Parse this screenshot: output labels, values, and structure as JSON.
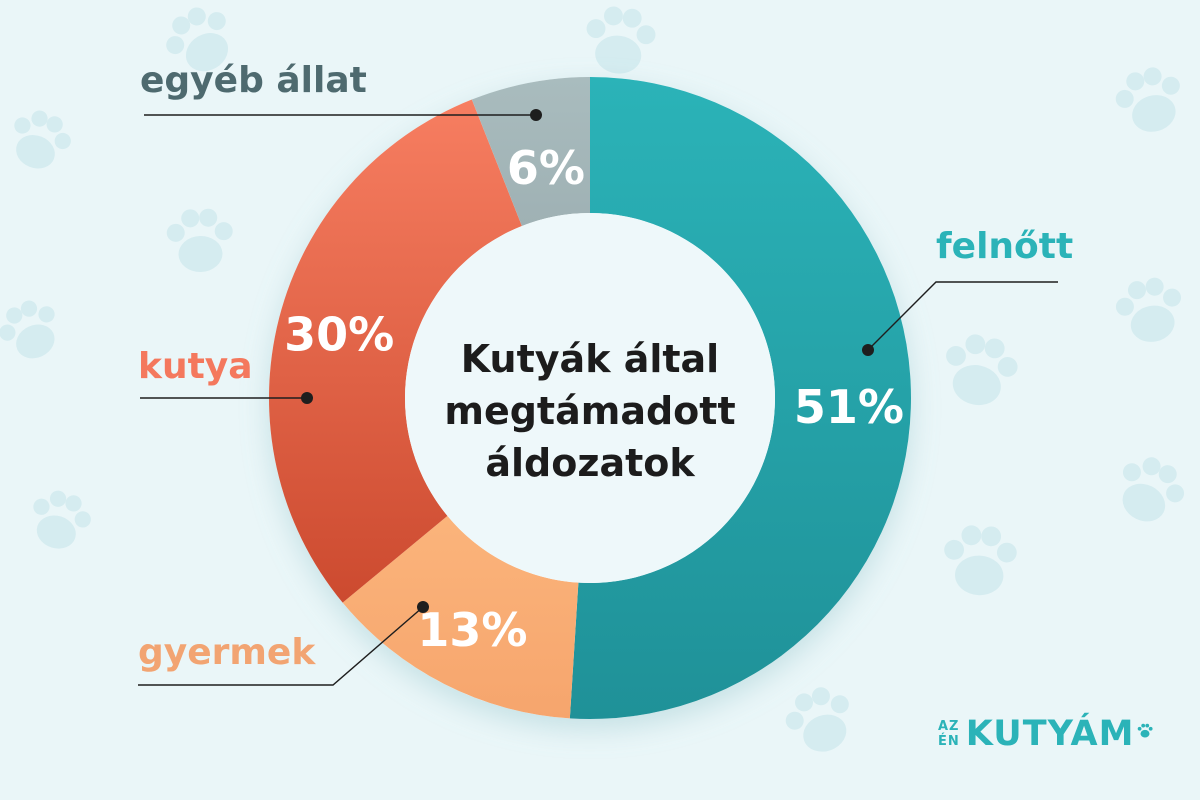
{
  "chart_data": {
    "type": "pie",
    "title": "Kutyák által megtámadott áldozatok",
    "title_lines": [
      "Kutyák által",
      "megtámadott",
      "áldozatok"
    ],
    "slices": [
      {
        "label": "felnőtt",
        "value": 51,
        "value_text": "51%",
        "color": "#2bb3b8",
        "color_dark": "#1f9198"
      },
      {
        "label": "gyermek",
        "value": 13,
        "value_text": "13%",
        "color": "#fbb47b",
        "color_dark": "#f6a56d"
      },
      {
        "label": "kutya",
        "value": 30,
        "value_text": "30%",
        "color": "#f77e61",
        "color_dark": "#cc4a2f"
      },
      {
        "label": "egyéb állat",
        "value": 6,
        "value_text": "6%",
        "color": "#a9bcbe",
        "color_dark": "#9fb1b4"
      }
    ],
    "legend": "none",
    "grid": false
  },
  "labels": {
    "felnott": "felnőtt",
    "gyermek": "gyermek",
    "kutya": "kutya",
    "egyeb": "egyéb állat"
  },
  "label_colors": {
    "felnott": "#2bb3b8",
    "gyermek": "#f2a472",
    "kutya": "#f4785d",
    "egyeb": "#4e6a6f"
  },
  "logo": {
    "line1": "AZ",
    "line2": "ÉN",
    "brand": "KUTYÁM",
    "color": "#2bb3b8"
  },
  "background_icon": "paw-print-icon"
}
